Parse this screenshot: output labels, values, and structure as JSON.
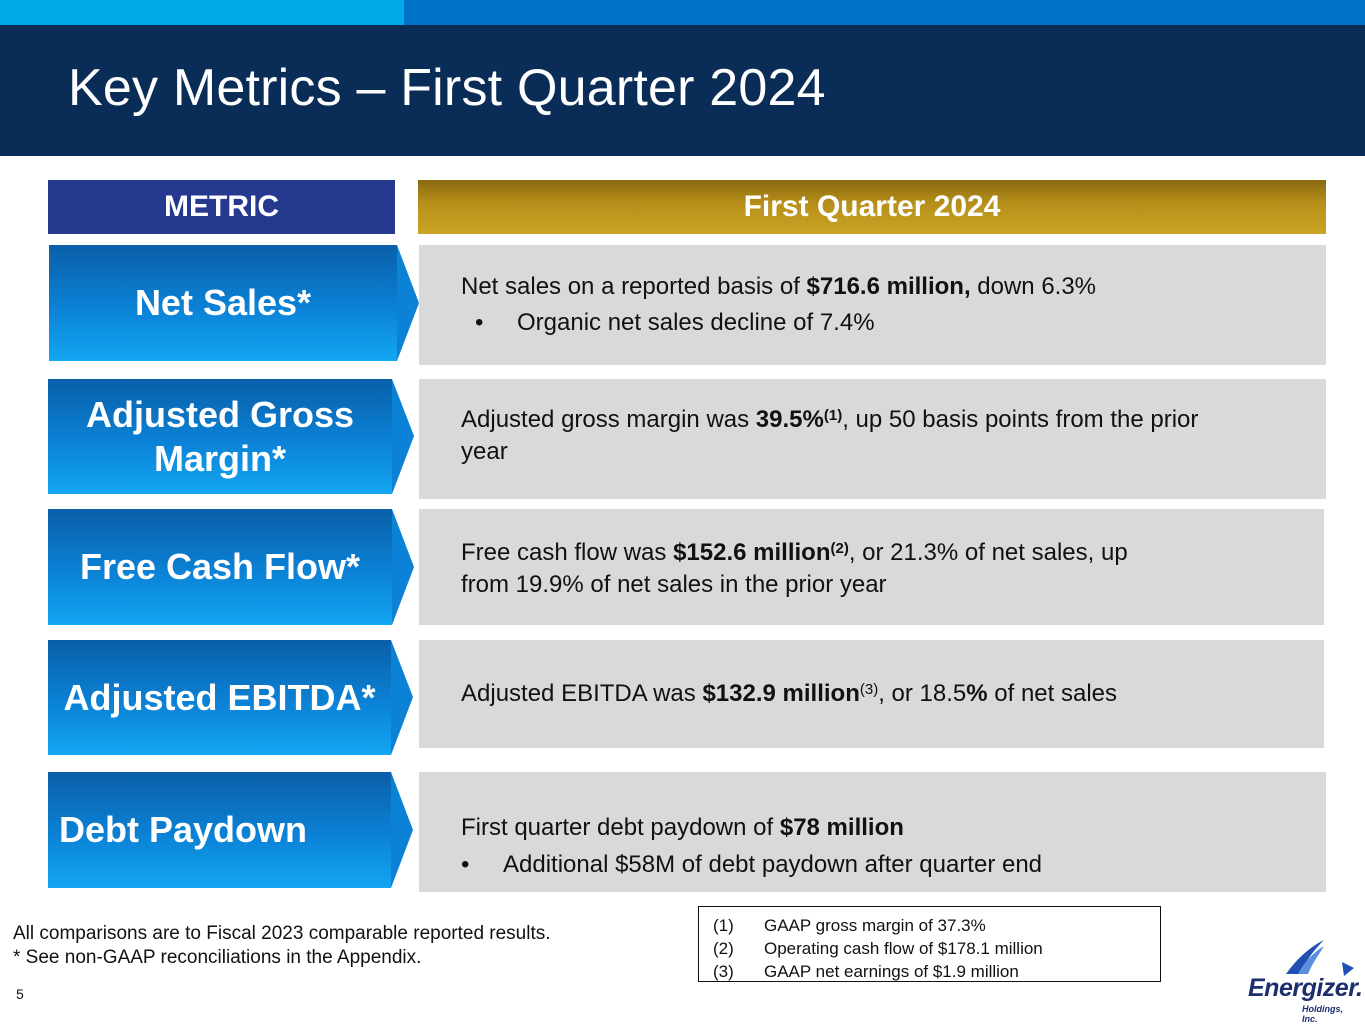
{
  "title": "Key Metrics – First Quarter 2024",
  "headers": {
    "metric": "METRIC",
    "quarter": "First Quarter 2024"
  },
  "rows": [
    {
      "metric_line1": "Net Sales*",
      "metric_line2": "",
      "detail": {
        "pre": "Net sales on a reported basis of ",
        "bold": "$716.6 million,",
        "post": " down 6.3%",
        "bullet": "Organic net sales decline of 7.4%"
      }
    },
    {
      "metric_line1": "Adjusted Gross",
      "metric_line2": "Margin*",
      "detail": {
        "pre": "Adjusted gross margin was ",
        "bold": "39.5%",
        "sup": "(1)",
        "post": ", up 50 basis points from the prior",
        "post2": "year"
      }
    },
    {
      "metric_line1": "Free Cash Flow*",
      "metric_line2": "",
      "detail": {
        "pre": "Free cash flow was ",
        "bold": "$152.6 million",
        "sup": "(2)",
        "post": ", or 21.3% of net sales, up",
        "post2": "from 19.9% of net sales in the prior year"
      }
    },
    {
      "metric_line1": "Adjusted EBITDA*",
      "metric_line2": "",
      "detail": {
        "pre": "Adjusted EBITDA was ",
        "bold": "$132.9 million",
        "sup": "(3)",
        "post": ", or 18.5",
        "bold2": "%",
        "post2": " of net sales"
      }
    },
    {
      "metric_line1": "Debt Paydown",
      "metric_line2": "",
      "detail": {
        "pre": "First quarter debt paydown of ",
        "bold": "$78 million",
        "bullet": "Additional $58M of debt paydown after quarter end"
      }
    }
  ],
  "bullet_char": "•",
  "footnotes_left": [
    "All comparisons are to Fiscal 2023 comparable reported results.",
    "* See non-GAAP reconciliations in the Appendix."
  ],
  "footnotes_box": [
    {
      "num": "(1)",
      "text": "GAAP gross margin of 37.3%"
    },
    {
      "num": "(2)",
      "text": "Operating cash flow of $178.1 million"
    },
    {
      "num": "(3)",
      "text": "GAAP net earnings of $1.9 million"
    }
  ],
  "page_number": "5",
  "logo": {
    "word": "Energizer.",
    "sub": "Holdings, Inc."
  },
  "colors": {
    "title_bar": "#0a2d57",
    "metric_header": "#253a8f",
    "quarter_header": "#b8901a",
    "metric_box": "#0b82d6",
    "detail_box": "#d9d9d9"
  }
}
